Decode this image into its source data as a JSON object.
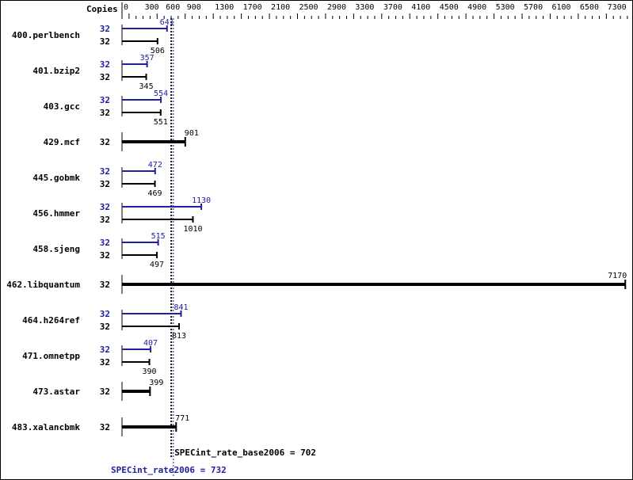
{
  "chart_data": {
    "type": "bar",
    "orientation": "horizontal",
    "copies_header": "Copies",
    "xlim": [
      0,
      7300
    ],
    "tick_labels": [
      "0",
      "300",
      "600",
      "900",
      "1300",
      "1700",
      "2100",
      "2500",
      "2900",
      "3300",
      "3700",
      "4100",
      "4500",
      "4900",
      "5300",
      "5700",
      "6100",
      "6500",
      "7300"
    ],
    "colors": {
      "base": "#000000",
      "peak": "#2020a0"
    },
    "categories": [
      "400.perlbench",
      "401.bzip2",
      "403.gcc",
      "429.mcf",
      "445.gobmk",
      "456.hmmer",
      "458.sjeng",
      "462.libquantum",
      "464.h264ref",
      "471.omnetpp",
      "473.astar",
      "483.xalancbmk"
    ],
    "series": [
      {
        "name": "peak",
        "copies": [
          "32",
          "32",
          "32",
          null,
          "32",
          "32",
          "32",
          null,
          "32",
          "32",
          null,
          null
        ],
        "values": [
          641,
          357,
          554,
          null,
          472,
          1130,
          515,
          null,
          841,
          407,
          null,
          null
        ]
      },
      {
        "name": "base",
        "copies": [
          "32",
          "32",
          "32",
          "32",
          "32",
          "32",
          "32",
          "32",
          "32",
          "32",
          "32",
          "32"
        ],
        "values": [
          506,
          345,
          551,
          901,
          469,
          1010,
          497,
          7170,
          813,
          390,
          399,
          771
        ]
      }
    ],
    "reference_lines": [
      {
        "label": "SPECint_rate_base2006 = 702",
        "value": 702,
        "color": "#000000"
      },
      {
        "label": "SPECint_rate2006 = 732",
        "value": 732,
        "color": "#2020a0"
      }
    ]
  }
}
